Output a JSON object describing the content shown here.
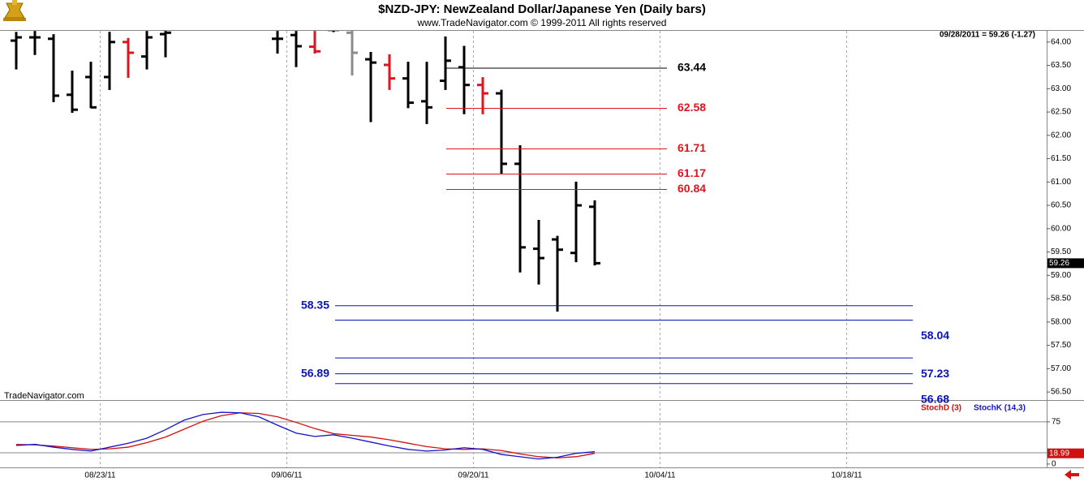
{
  "chart_data": [
    {
      "type": "ohlc",
      "title": "$NZD-JPY:  NewZealand Dollar/Japanese Yen  (Daily bars)",
      "subtitle": "www.TradeNavigator.com © 1999-2011 All rights reserved",
      "status": "09/28/2011 = 59.26 (-1.27)",
      "watermark": "TradeNavigator.com",
      "open": [
        64.03,
        64.1,
        64.07,
        62.87,
        63.25,
        63.25,
        64.0,
        63.69,
        64.17,
        null,
        null,
        null,
        null,
        null,
        64.07,
        64.15,
        63.9,
        64.26,
        64.2,
        63.63,
        63.51,
        63.22,
        62.73,
        63.17,
        63.46,
        63.08,
        62.9,
        61.39,
        59.57,
        59.77,
        59.48,
        60.47,
        null,
        null,
        null,
        null,
        null,
        null,
        null,
        null,
        null,
        null,
        null,
        null,
        null,
        null,
        null,
        null,
        null,
        null,
        null,
        null,
        null,
        null,
        null,
        null
      ],
      "high": [
        64.2,
        64.22,
        64.15,
        63.37,
        63.56,
        64.2,
        64.07,
        64.22,
        64.22,
        null,
        null,
        null,
        null,
        null,
        64.22,
        64.22,
        64.22,
        64.3,
        64.24,
        63.77,
        63.72,
        63.56,
        63.56,
        64.1,
        63.9,
        63.23,
        62.96,
        61.77,
        60.17,
        59.83,
        60.99,
        60.59,
        null,
        null,
        null,
        null,
        null,
        null,
        null,
        null,
        null,
        null,
        null,
        null,
        null,
        null,
        null,
        null,
        null,
        null,
        null,
        null,
        null,
        null,
        null,
        null
      ],
      "low": [
        63.43,
        63.74,
        62.73,
        62.5,
        62.6,
        62.99,
        63.25,
        63.43,
        63.69,
        null,
        null,
        null,
        null,
        null,
        63.77,
        63.48,
        63.77,
        64.23,
        63.3,
        62.3,
        62.99,
        62.6,
        62.26,
        62.99,
        62.47,
        62.47,
        61.2,
        59.08,
        58.82,
        58.24,
        59.3,
        59.23,
        null,
        null,
        null,
        null,
        null,
        null,
        null,
        null,
        null,
        null,
        null,
        null,
        null,
        null,
        null,
        null,
        null,
        null,
        null,
        null,
        null,
        null,
        null,
        null
      ],
      "close": [
        64.1,
        64.1,
        62.85,
        62.55,
        62.6,
        64.0,
        63.77,
        64.1,
        64.2,
        null,
        null,
        null,
        null,
        null,
        64.07,
        63.91,
        63.8,
        64.26,
        63.77,
        63.56,
        63.22,
        62.7,
        62.6,
        63.6,
        63.08,
        62.9,
        61.39,
        59.6,
        59.37,
        59.55,
        60.5,
        59.26,
        null,
        null,
        null,
        null,
        null,
        null,
        null,
        null,
        null,
        null,
        null,
        null,
        null,
        null,
        null,
        null,
        null,
        null,
        null,
        null,
        null,
        null,
        null,
        null
      ],
      "colors": [
        "#000000",
        "#000000",
        "#000000",
        "#000000",
        "#000000",
        "#000000",
        "#e0141e",
        "#000000",
        "#000000",
        null,
        null,
        null,
        null,
        null,
        "#000000",
        "#000000",
        "#e0141e",
        "#000000",
        "#8c8c8c",
        "#000000",
        "#e0141e",
        "#000000",
        "#000000",
        "#000000",
        "#000000",
        "#e0141e",
        "#000000",
        "#000000",
        "#000000",
        "#000000",
        "#000000",
        "#000000",
        null,
        null,
        null,
        null,
        null,
        null,
        null,
        null,
        null,
        null,
        null,
        null,
        null,
        null,
        null,
        null,
        null,
        null,
        null,
        null,
        null,
        null,
        null,
        null
      ],
      "ylim": [
        56.38,
        64.24
      ],
      "yticks": [
        {
          "value": 56.5,
          "label": "56.50"
        },
        {
          "value": 57,
          "label": "57.00"
        },
        {
          "value": 57.5,
          "label": "57.50"
        },
        {
          "value": 58,
          "label": "58.00"
        },
        {
          "value": 58.5,
          "label": "58.50"
        },
        {
          "value": 59,
          "label": "59.00"
        },
        {
          "value": 59.5,
          "label": "59.50"
        },
        {
          "value": 60,
          "label": "60.00"
        },
        {
          "value": 60.5,
          "label": "60.50"
        },
        {
          "value": 61,
          "label": "61.00"
        },
        {
          "value": 61.5,
          "label": "61.50"
        },
        {
          "value": 62,
          "label": "62.00"
        },
        {
          "value": 62.5,
          "label": "62.50"
        },
        {
          "value": 63,
          "label": "63.00"
        },
        {
          "value": 63.5,
          "label": "63.50"
        },
        {
          "value": 64,
          "label": "64.00"
        }
      ],
      "upper_levels": [
        {
          "value": 63.44,
          "color": "#000000"
        },
        {
          "value": 62.58,
          "color": "#e0141e"
        },
        {
          "value": 61.71,
          "color": "#e0141e"
        },
        {
          "value": 61.17,
          "color": "#e0141e"
        },
        {
          "value": 60.84,
          "color": "#e0141e"
        }
      ],
      "lower_levels": [
        {
          "value": 58.35,
          "color": "#0a14b4",
          "label_side": "left"
        },
        {
          "value": 58.04,
          "color": "#0a14b4",
          "label_side": "right"
        },
        {
          "value": 57.23,
          "color": "#0a14b4",
          "label_side": "right"
        },
        {
          "value": 56.89,
          "color": "#0a14b4",
          "label_side": "left"
        },
        {
          "value": 56.68,
          "color": "#0a14b4",
          "label_side": "right"
        }
      ]
    },
    {
      "type": "line",
      "categories": [
        null,
        null,
        null,
        null,
        null,
        "08/23/11",
        null,
        null,
        null,
        null,
        null,
        null,
        null,
        null,
        null,
        "09/06/11",
        null,
        null,
        null,
        null,
        null,
        null,
        null,
        null,
        null,
        "09/20/11",
        null,
        null,
        null,
        null,
        null,
        null,
        null,
        null,
        null,
        "10/04/11",
        null,
        null,
        null,
        null,
        null,
        null,
        null,
        null,
        null,
        "10/18/11",
        null,
        null,
        null,
        null,
        null,
        null,
        null,
        null,
        null,
        null
      ],
      "series": [
        {
          "name": "StochD (3)",
          "color": "#d01010",
          "values": [
            35,
            34,
            32,
            29,
            26,
            27,
            30,
            38,
            48,
            62,
            76,
            86,
            91,
            90,
            84,
            74,
            63,
            54,
            51,
            48,
            43,
            37,
            31,
            27,
            26,
            27,
            24,
            18,
            13,
            11,
            13,
            18.99,
            null,
            null,
            null,
            null,
            null,
            null,
            null,
            null,
            null,
            null,
            null,
            null,
            null,
            null,
            null,
            null,
            null,
            null,
            null,
            null,
            null,
            null,
            null,
            null
          ]
        },
        {
          "name": "StochK (14,3)",
          "color": "#1414c8",
          "values": [
            33,
            35,
            30,
            26,
            23,
            30,
            37,
            46,
            61,
            78,
            88,
            92,
            91,
            84,
            69,
            55,
            49,
            52,
            46,
            39,
            32,
            26,
            23,
            25,
            29,
            26,
            17,
            13,
            9,
            12,
            19,
            22,
            null,
            null,
            null,
            null,
            null,
            null,
            null,
            null,
            null,
            null,
            null,
            null,
            null,
            null,
            null,
            null,
            null,
            null,
            null,
            null,
            null,
            null,
            null,
            null
          ]
        }
      ],
      "ylim": [
        -6,
        108
      ],
      "yticks": [
        0,
        75
      ],
      "reference_lines": [
        75,
        20
      ]
    }
  ]
}
